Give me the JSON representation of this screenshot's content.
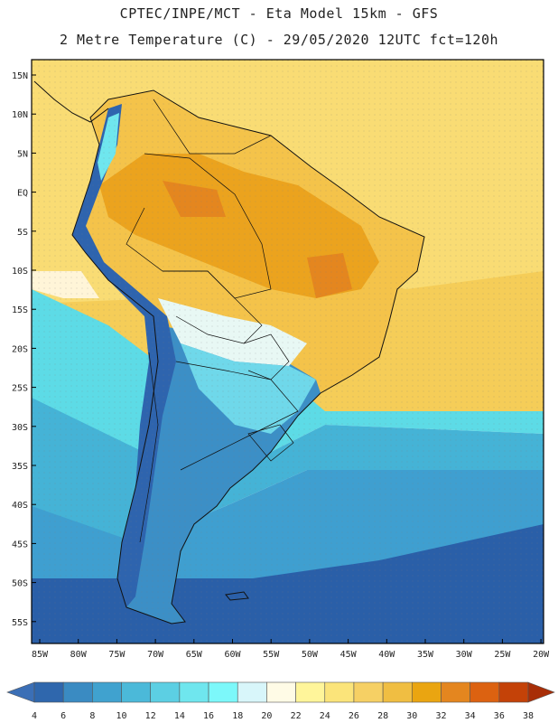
{
  "header": {
    "line1": "CPTEC/INPE/MCT -  Eta Model 15km - GFS",
    "line2": "2 Metre Temperature (C) - 29/05/2020 12UTC fct=120h"
  },
  "axes": {
    "lat_labels": [
      "15N",
      "10N",
      "5N",
      "EQ",
      "5S",
      "10S",
      "15S",
      "20S",
      "25S",
      "30S",
      "35S",
      "40S",
      "45S",
      "50S",
      "55S"
    ],
    "lon_labels": [
      "85W",
      "80W",
      "75W",
      "70W",
      "65W",
      "60W",
      "55W",
      "50W",
      "45W",
      "40W",
      "35W",
      "30W",
      "25W",
      "20W"
    ]
  },
  "colorbar": {
    "labels": [
      "4",
      "6",
      "8",
      "10",
      "12",
      "14",
      "16",
      "18",
      "20",
      "22",
      "24",
      "26",
      "28",
      "30",
      "32",
      "34",
      "36",
      "38"
    ],
    "colors": [
      "#3b6fb6",
      "#2f67ad",
      "#3a8bc2",
      "#40a2cf",
      "#4bb9d9",
      "#5ccfe3",
      "#6fe6ee",
      "#7cf8fa",
      "#d8f6fa",
      "#fffbe6",
      "#fff59a",
      "#fbe47a",
      "#f6d064",
      "#f0be42",
      "#eaa511",
      "#e4861f",
      "#dc6211",
      "#c44208",
      "#a82e07"
    ]
  },
  "map_regions": {
    "ocean_cold": "#2a5fa8",
    "ocean_mid": "#3f9fd0",
    "ocean_warm": "#5ddbe6",
    "tropical_sea": "#f9dc74",
    "land_hot": "#eba31e",
    "land_warm": "#f4c34a",
    "andes_cold": "#2e64ae",
    "land_cool": "#6fd8ea"
  }
}
